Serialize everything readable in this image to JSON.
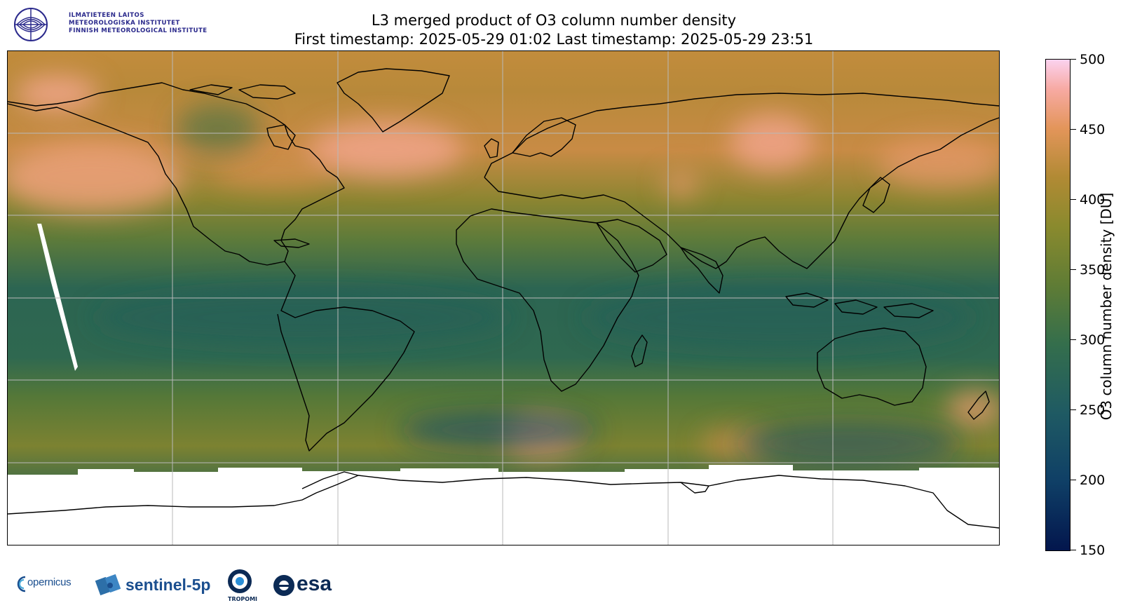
{
  "header": {
    "title_line1": "L3 merged product of O3 column number density",
    "title_line2": "First timestamp: 2025-05-29 01:02   Last timestamp: 2025-05-29 23:51"
  },
  "fmi_logo": {
    "line1": "ILMATIETEEN LAITOS",
    "line2": "METEOROLOGISKA INSTITUTET",
    "line3": "FINNISH METEOROLOGICAL INSTITUTE",
    "color": "#2b2a8c"
  },
  "colorbar": {
    "label": "O3 column number density [DU]",
    "ticks": [
      "500",
      "450",
      "400",
      "350",
      "300",
      "250",
      "200",
      "150"
    ],
    "min": 150,
    "max": 500,
    "colors": [
      "#03164d",
      "#1f5a63",
      "#5f7c35",
      "#b18a34",
      "#e3955a",
      "#fbd2ef"
    ]
  },
  "footer_logos": {
    "copernicus": "opernicus",
    "sentinel": "sentinel-5p",
    "tropomi": "TROPOMI",
    "esa": "esa"
  }
}
